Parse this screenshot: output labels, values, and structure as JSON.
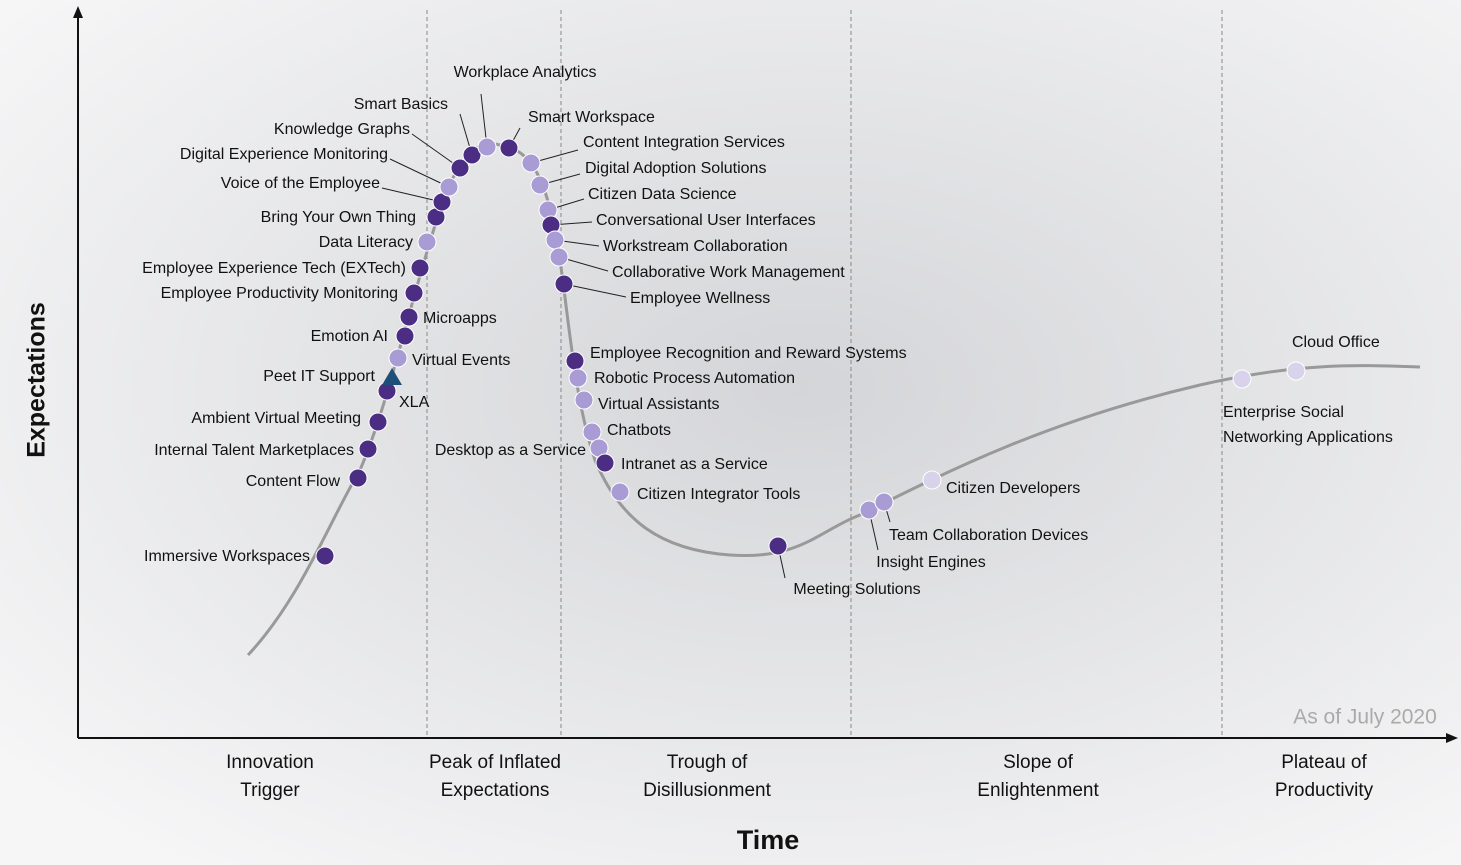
{
  "axes": {
    "y_label": "Expectations",
    "x_label": "Time"
  },
  "phases": [
    [
      "Innovation",
      "Trigger"
    ],
    [
      "Peak of Inflated",
      "Expectations"
    ],
    [
      "Trough of",
      "Disillusionment"
    ],
    [
      "Slope of",
      "Enlightenment"
    ],
    [
      "Plateau of",
      "Productivity"
    ]
  ],
  "note": "As of July 2020",
  "nodes": [
    {
      "label": [
        "Immersive Workspaces"
      ],
      "color": "#4b2e83",
      "shape": "circle"
    },
    {
      "label": [
        "Content Flow"
      ],
      "color": "#4b2e83",
      "shape": "circle"
    },
    {
      "label": [
        "Internal Talent Marketplaces"
      ],
      "color": "#4b2e83",
      "shape": "circle"
    },
    {
      "label": [
        "Ambient Virtual Meeting"
      ],
      "color": "#4b2e83",
      "shape": "circle"
    },
    {
      "label": [
        "XLA"
      ],
      "color": "#4b2e83",
      "shape": "circle"
    },
    {
      "label": [
        "Peet IT Support"
      ],
      "color": "#1f4e79",
      "shape": "triangle"
    },
    {
      "label": [
        "Virtual Events"
      ],
      "color": "#a99bd3",
      "shape": "circle"
    },
    {
      "label": [
        "Emotion AI"
      ],
      "color": "#4b2e83",
      "shape": "circle"
    },
    {
      "label": [
        "Microapps"
      ],
      "color": "#4b2e83",
      "shape": "circle"
    },
    {
      "label": [
        "Employee Productivity Monitoring"
      ],
      "color": "#4b2e83",
      "shape": "circle"
    },
    {
      "label": [
        "Employee Experience Tech (EXTech)"
      ],
      "color": "#4b2e83",
      "shape": "circle"
    },
    {
      "label": [
        "Data Literacy"
      ],
      "color": "#a99bd3",
      "shape": "circle"
    },
    {
      "label": [
        "Bring Your Own Thing"
      ],
      "color": "#4b2e83",
      "shape": "circle"
    },
    {
      "label": [
        "Voice of the Employee"
      ],
      "color": "#4b2e83",
      "shape": "circle"
    },
    {
      "label": [
        "Digital Experience Monitoring"
      ],
      "color": "#a99bd3",
      "shape": "circle"
    },
    {
      "label": [
        "Knowledge Graphs"
      ],
      "color": "#4b2e83",
      "shape": "circle"
    },
    {
      "label": [
        "Smart Basics"
      ],
      "color": "#4b2e83",
      "shape": "circle"
    },
    {
      "label": [
        "Workplace Analytics"
      ],
      "color": "#a99bd3",
      "shape": "circle"
    },
    {
      "label": [
        "Smart Workspace"
      ],
      "color": "#4b2e83",
      "shape": "circle"
    },
    {
      "label": [
        "Content Integration Services"
      ],
      "color": "#a99bd3",
      "shape": "circle"
    },
    {
      "label": [
        "Digital Adoption Solutions"
      ],
      "color": "#a99bd3",
      "shape": "circle"
    },
    {
      "label": [
        "Citizen Data Science"
      ],
      "color": "#a99bd3",
      "shape": "circle"
    },
    {
      "label": [
        "Conversational User Interfaces"
      ],
      "color": "#4b2e83",
      "shape": "circle"
    },
    {
      "label": [
        "Workstream Collaboration"
      ],
      "color": "#a99bd3",
      "shape": "circle"
    },
    {
      "label": [
        "Collaborative Work Management"
      ],
      "color": "#a99bd3",
      "shape": "circle"
    },
    {
      "label": [
        "Employee Wellness"
      ],
      "color": "#4b2e83",
      "shape": "circle"
    },
    {
      "label": [
        "Employee Recognition and Reward Systems"
      ],
      "color": "#4b2e83",
      "shape": "circle"
    },
    {
      "label": [
        "Robotic Process Automation"
      ],
      "color": "#a99bd3",
      "shape": "circle"
    },
    {
      "label": [
        "Virtual Assistants"
      ],
      "color": "#a99bd3",
      "shape": "circle"
    },
    {
      "label": [
        "Chatbots"
      ],
      "color": "#a99bd3",
      "shape": "circle"
    },
    {
      "label": [
        "Desktop as a Service"
      ],
      "color": "#a99bd3",
      "shape": "circle"
    },
    {
      "label": [
        "Intranet as a Service"
      ],
      "color": "#4b2e83",
      "shape": "circle"
    },
    {
      "label": [
        "Citizen Integrator Tools"
      ],
      "color": "#a99bd3",
      "shape": "circle"
    },
    {
      "label": [
        "Meeting Solutions"
      ],
      "color": "#4b2e83",
      "shape": "circle"
    },
    {
      "label": [
        "Insight Engines"
      ],
      "color": "#a99bd3",
      "shape": "circle"
    },
    {
      "label": [
        "Team Collaboration Devices"
      ],
      "color": "#a99bd3",
      "shape": "circle"
    },
    {
      "label": [
        "Citizen Developers"
      ],
      "color": "#d8d2ea",
      "shape": "circle"
    },
    {
      "label": [
        "Enterprise Social",
        "Networking Applications"
      ],
      "color": "#d8d2ea",
      "shape": "circle"
    },
    {
      "label": [
        "Cloud Office"
      ],
      "color": "#d8d2ea",
      "shape": "circle"
    }
  ]
}
